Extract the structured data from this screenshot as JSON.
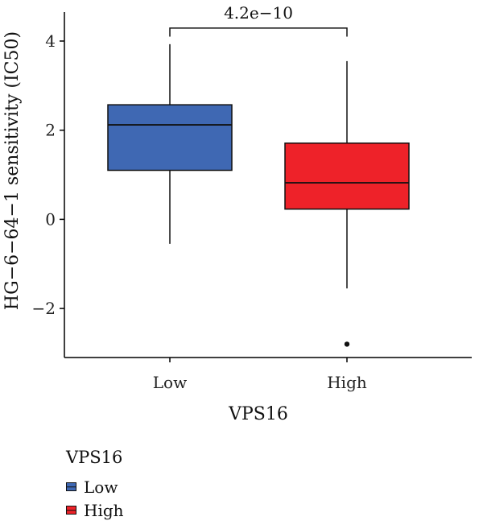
{
  "chart_data": {
    "type": "box",
    "xlabel": "VPS16",
    "ylabel": "HG−6−64−1 sensitivity (IC50)",
    "ylim": [
      -3.1,
      4.65
    ],
    "yticks": [
      -2,
      0,
      2,
      4
    ],
    "ytick_labels": [
      "−2",
      "0",
      "2",
      "4"
    ],
    "categories": [
      "Low",
      "High"
    ],
    "boxes": [
      {
        "name": "Low",
        "whisker_low": -0.55,
        "q1": 1.1,
        "median": 2.12,
        "q3": 2.57,
        "whisker_high": 3.93,
        "outliers": [],
        "color": "#3f68b3"
      },
      {
        "name": "High",
        "whisker_low": -1.55,
        "q1": 0.23,
        "median": 0.82,
        "q3": 1.71,
        "whisker_high": 3.55,
        "outliers": [
          -2.8
        ],
        "color": "#ee2229"
      }
    ],
    "comparison": {
      "label": "4.2e−10",
      "y": 4.29,
      "tick_bottom": 4.1
    },
    "legend": {
      "title": "VPS16",
      "placement": "bottom-left",
      "items": [
        {
          "label": "Low",
          "color": "#3f68b3"
        },
        {
          "label": "High",
          "color": "#ee2229"
        }
      ]
    }
  }
}
